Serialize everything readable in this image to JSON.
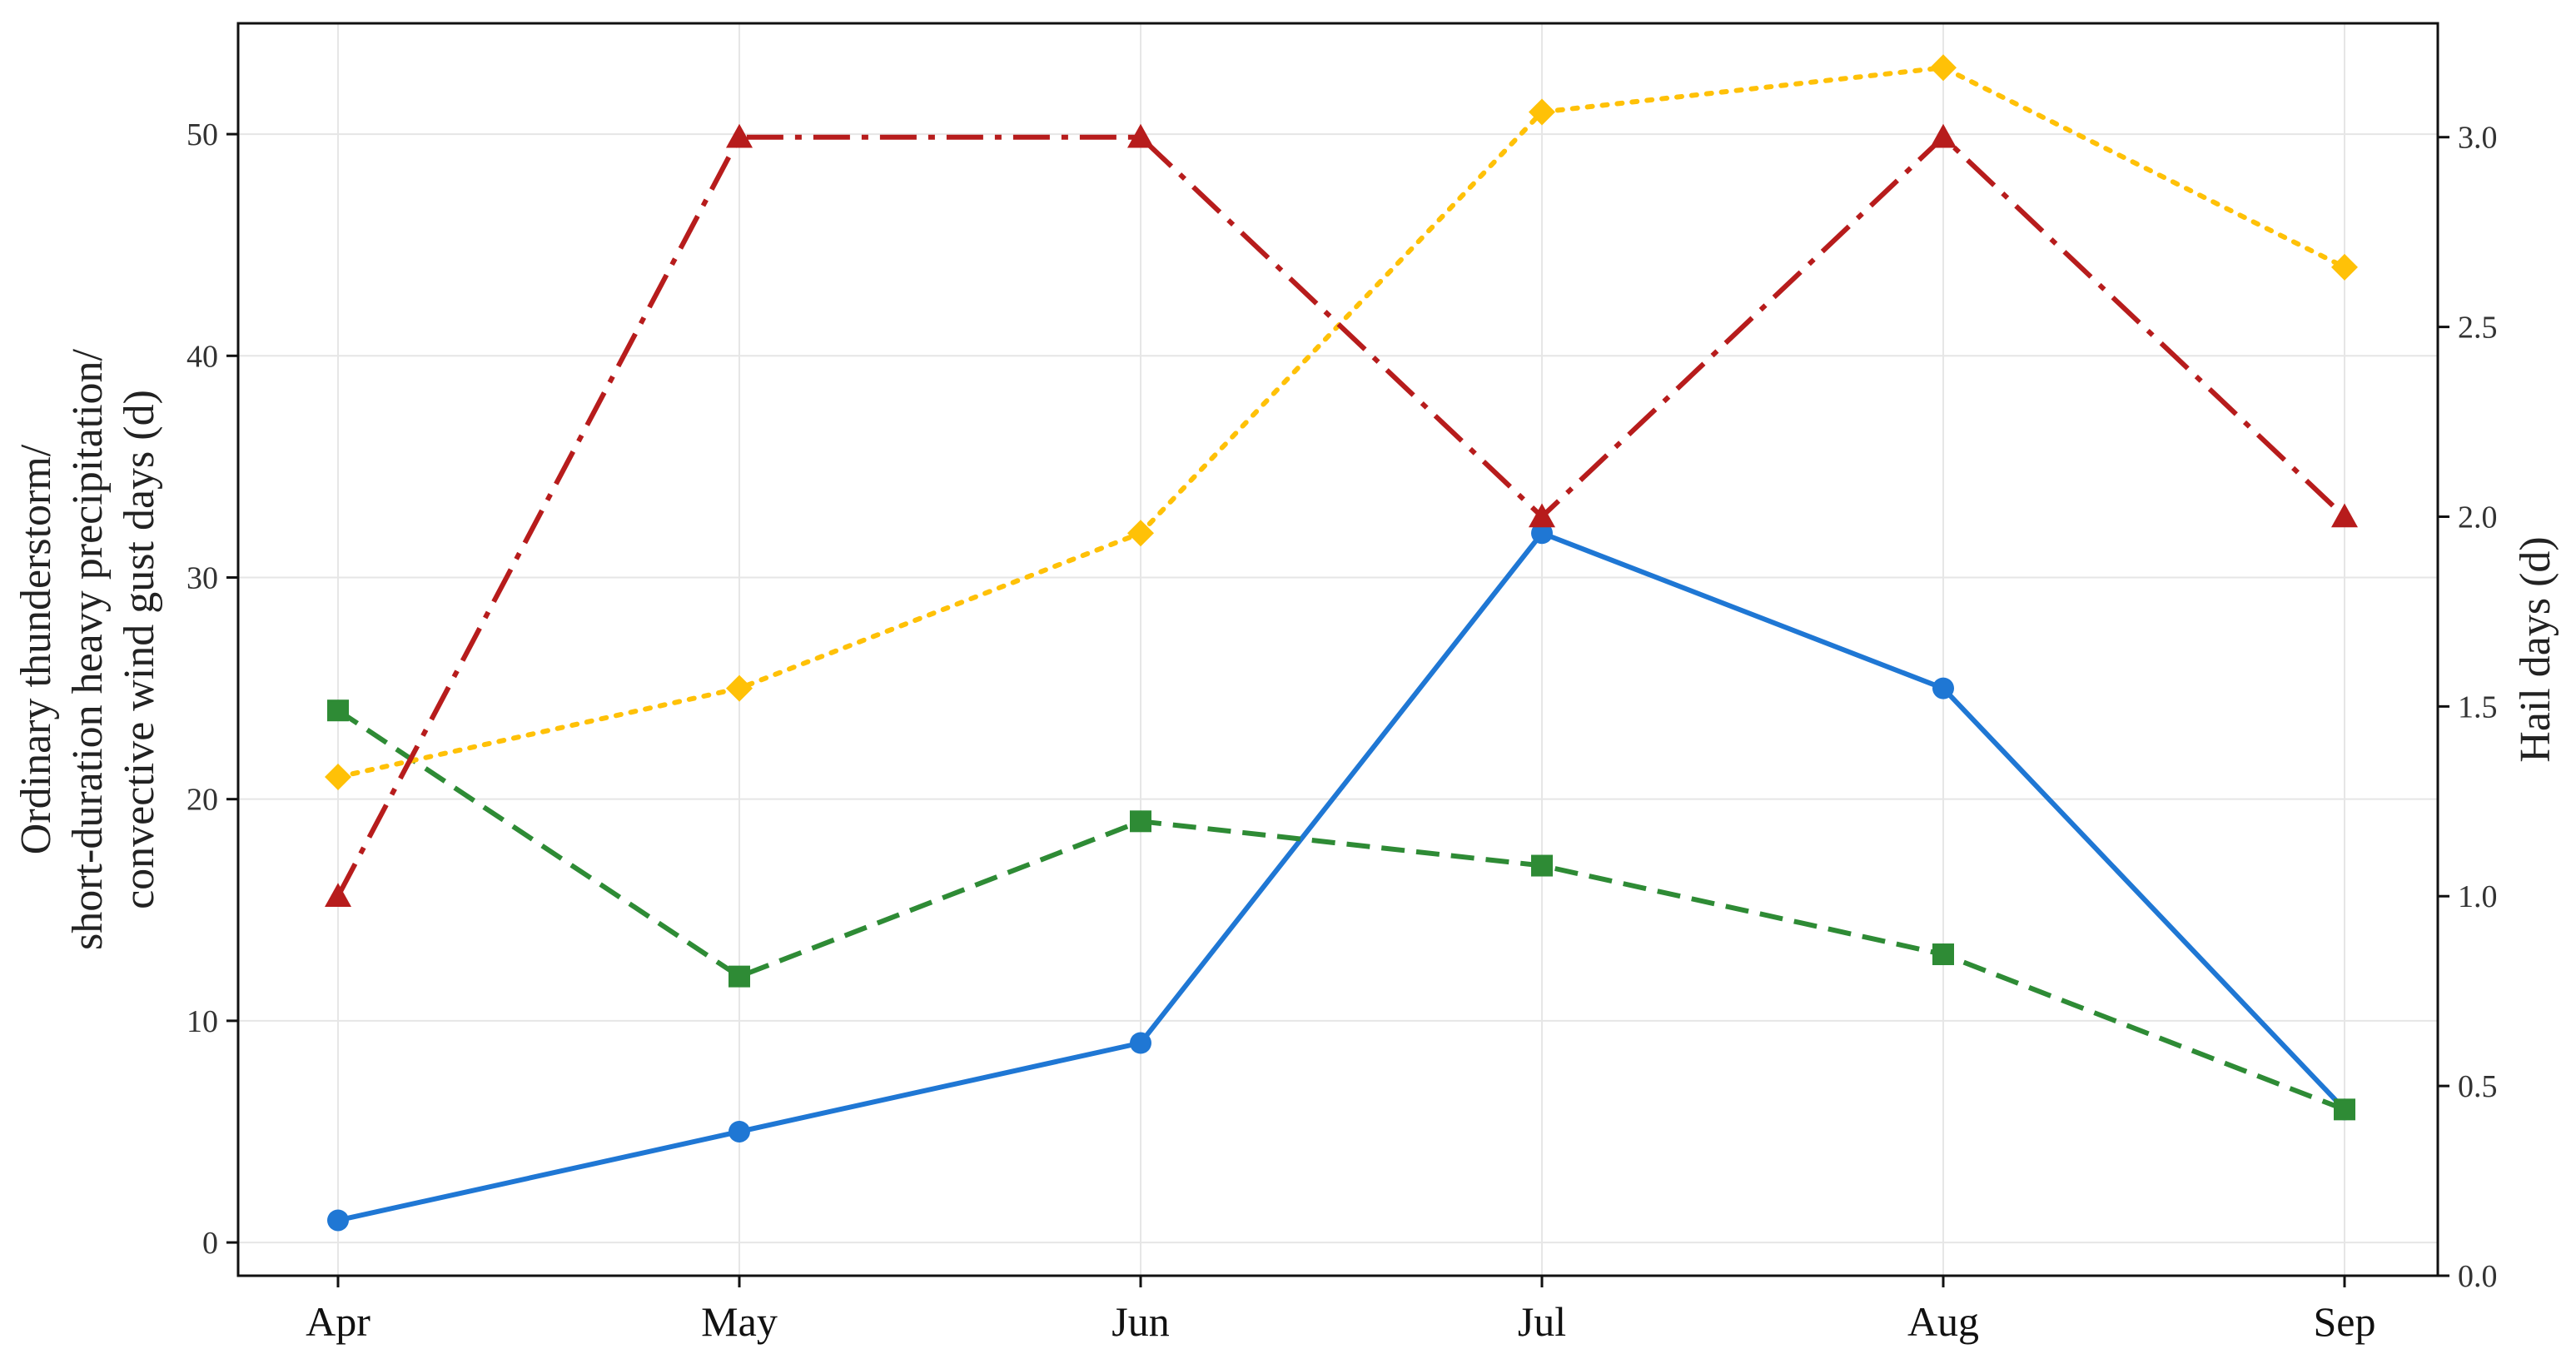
{
  "chart_data": {
    "type": "line",
    "categories": [
      "Apr",
      "May",
      "Jun",
      "Jul",
      "Aug",
      "Sep"
    ],
    "ylabel_lines": [
      "Ordinary thunderstorm/",
      "short-duration heavy precipitation/",
      "convective wind gust days (d)"
    ],
    "y2label": "Hail days (d)",
    "ylim": [
      -1.5,
      55
    ],
    "y2lim": [
      0,
      3.3
    ],
    "yticks": [
      0,
      10,
      20,
      30,
      40,
      50
    ],
    "y2ticks": [
      0.0,
      0.5,
      1.0,
      1.5,
      2.0,
      2.5,
      3.0
    ],
    "y2tick_labels": [
      "0.0",
      "0.5",
      "1.0",
      "1.5",
      "2.0",
      "2.5",
      "3.0"
    ],
    "grid": true,
    "legend": "none",
    "series": [
      {
        "values": [
          1,
          5,
          9,
          32,
          25,
          6
        ],
        "axis": "left",
        "color": "#1f77d4",
        "dash": "solid",
        "marker": "circle"
      },
      {
        "values": [
          24,
          12,
          19,
          17,
          13,
          6
        ],
        "axis": "left",
        "color": "#2e8b35",
        "dash": "dashed",
        "marker": "square"
      },
      {
        "values": [
          21,
          25,
          32,
          51,
          53,
          44
        ],
        "axis": "left",
        "color": "#ffc107",
        "dash": "dotted",
        "marker": "diamond"
      },
      {
        "values": [
          1.0,
          3.0,
          3.0,
          2.0,
          3.0,
          2.0
        ],
        "axis": "right",
        "color": "#b71c1c",
        "dash": "dashdot",
        "marker": "triangle"
      }
    ]
  }
}
